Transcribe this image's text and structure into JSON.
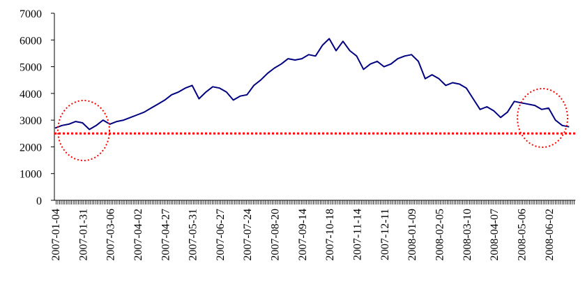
{
  "chart_data": {
    "type": "line",
    "categories": [
      "2007-01-04",
      null,
      null,
      null,
      "2007-01-31",
      null,
      null,
      null,
      "2007-03-06",
      null,
      null,
      null,
      "2007-04-02",
      null,
      null,
      null,
      "2007-04-27",
      null,
      null,
      null,
      "2007-05-31",
      null,
      null,
      null,
      "2007-06-27",
      null,
      null,
      null,
      "2007-07-24",
      null,
      null,
      null,
      "2007-08-20",
      null,
      null,
      null,
      "2007-09-14",
      null,
      null,
      null,
      "2007-10-18",
      null,
      null,
      null,
      "2007-11-14",
      null,
      null,
      null,
      "2007-12-11",
      null,
      null,
      null,
      "2008-01-09",
      null,
      null,
      null,
      "2008-02-05",
      null,
      null,
      null,
      "2008-03-10",
      null,
      null,
      null,
      "2008-04-07",
      null,
      null,
      null,
      "2008-05-06",
      null,
      null,
      null,
      "2008-06-02",
      null,
      null,
      null
    ],
    "series": [
      {
        "color": "#000080",
        "values": [
          2700,
          2800,
          2850,
          2950,
          2900,
          2650,
          2800,
          3000,
          2850,
          2950,
          3000,
          3100,
          3200,
          3300,
          3450,
          3600,
          3750,
          3950,
          4050,
          4200,
          4300,
          3800,
          4050,
          4250,
          4200,
          4050,
          3750,
          3900,
          3950,
          4300,
          4500,
          4750,
          4950,
          5100,
          5300,
          5250,
          5300,
          5450,
          5400,
          5800,
          6050,
          5600,
          5950,
          5600,
          5400,
          4900,
          5100,
          5200,
          5000,
          5100,
          5300,
          5400,
          5450,
          5200,
          4550,
          4700,
          4550,
          4300,
          4400,
          4350,
          4200,
          3800,
          3400,
          3500,
          3350,
          3100,
          3300,
          3700,
          3650,
          3600,
          3550,
          3400,
          3450,
          3000,
          2800,
          2750
        ]
      }
    ],
    "ylim": [
      0,
      7000
    ],
    "yticks": [
      0,
      1000,
      2000,
      3000,
      4000,
      5000,
      6000,
      7000
    ],
    "reference_line": {
      "value": 2500,
      "color": "#ff0000"
    },
    "grid": false
  }
}
